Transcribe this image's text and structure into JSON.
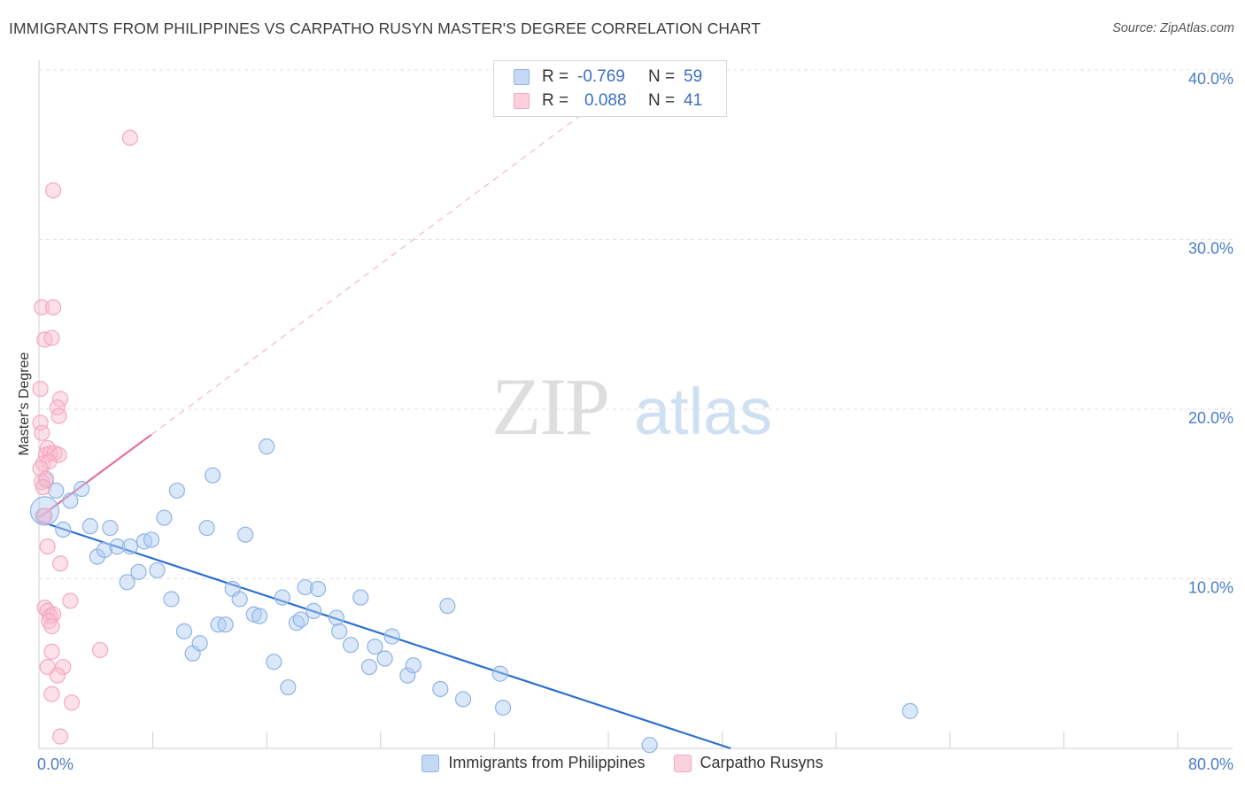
{
  "title": "IMMIGRANTS FROM PHILIPPINES VS CARPATHO RUSYN MASTER'S DEGREE CORRELATION CHART",
  "source": "Source: ZipAtlas.com",
  "watermark": {
    "zip": "ZIP",
    "atlas": "atlas"
  },
  "legend": {
    "rows": [
      {
        "r_label": "R =",
        "r_value": "-0.769",
        "n_label": "N =",
        "n_value": "59"
      },
      {
        "r_label": "R =",
        "r_value": "0.088",
        "n_label": "N =",
        "n_value": "41"
      }
    ]
  },
  "chart_data": {
    "type": "scatter",
    "title": "IMMIGRANTS FROM PHILIPPINES VS CARPATHO RUSYN MASTER'S DEGREE CORRELATION CHART",
    "xlabel": "",
    "ylabel": "Master's Degree",
    "xlim": [
      0,
      80
    ],
    "ylim": [
      0,
      40
    ],
    "x_tick_labels": [
      "0.0%",
      "80.0%"
    ],
    "y_ticks": [
      10,
      20,
      30,
      40
    ],
    "y_tick_labels": [
      "10.0%",
      "20.0%",
      "30.0%",
      "40.0%"
    ],
    "grid": true,
    "legend_position": "top-center",
    "series": [
      {
        "name": "Immigrants from Philippines",
        "color": "#8fb4e6",
        "line_color": "#2d6fd1",
        "stats": {
          "R": -0.769,
          "N": 59
        },
        "trend": {
          "x0": 0,
          "y0": 13.4,
          "x1": 48.6,
          "y1": 0
        },
        "points": [
          [
            0.3,
            13.7
          ],
          [
            0.5,
            15.8
          ],
          [
            1.2,
            15.2
          ],
          [
            1.7,
            12.9
          ],
          [
            2.2,
            14.6
          ],
          [
            3.0,
            15.3
          ],
          [
            3.6,
            13.1
          ],
          [
            4.1,
            11.3
          ],
          [
            4.6,
            11.7
          ],
          [
            5.0,
            13.0
          ],
          [
            5.5,
            11.9
          ],
          [
            6.2,
            9.8
          ],
          [
            6.4,
            11.9
          ],
          [
            7.0,
            10.4
          ],
          [
            7.4,
            12.2
          ],
          [
            7.9,
            12.3
          ],
          [
            8.3,
            10.5
          ],
          [
            8.8,
            13.6
          ],
          [
            9.3,
            8.8
          ],
          [
            9.7,
            15.2
          ],
          [
            10.2,
            6.9
          ],
          [
            10.8,
            5.6
          ],
          [
            11.3,
            6.2
          ],
          [
            11.8,
            13.0
          ],
          [
            12.2,
            16.1
          ],
          [
            12.6,
            7.3
          ],
          [
            13.1,
            7.3
          ],
          [
            13.6,
            9.4
          ],
          [
            14.1,
            8.8
          ],
          [
            14.5,
            12.6
          ],
          [
            15.1,
            7.9
          ],
          [
            15.5,
            7.8
          ],
          [
            16.0,
            17.8
          ],
          [
            16.5,
            5.1
          ],
          [
            17.1,
            8.9
          ],
          [
            17.5,
            3.6
          ],
          [
            18.1,
            7.4
          ],
          [
            18.4,
            7.6
          ],
          [
            18.7,
            9.5
          ],
          [
            19.3,
            8.1
          ],
          [
            19.6,
            9.4
          ],
          [
            20.9,
            7.7
          ],
          [
            21.1,
            6.9
          ],
          [
            21.9,
            6.1
          ],
          [
            22.6,
            8.9
          ],
          [
            23.2,
            4.8
          ],
          [
            23.6,
            6.0
          ],
          [
            24.3,
            5.3
          ],
          [
            24.8,
            6.6
          ],
          [
            25.9,
            4.3
          ],
          [
            26.3,
            4.9
          ],
          [
            28.2,
            3.5
          ],
          [
            28.7,
            8.4
          ],
          [
            29.8,
            2.9
          ],
          [
            32.4,
            4.4
          ],
          [
            32.6,
            2.4
          ],
          [
            42.9,
            0.2
          ],
          [
            61.2,
            2.2
          ],
          [
            0.4,
            14.0
          ]
        ]
      },
      {
        "name": "Carpatho Rusyns",
        "color": "#f4a8c0",
        "line_color": "#e8719b",
        "stats": {
          "R": 0.088,
          "N": 41
        },
        "trend": {
          "x0": 0,
          "y0": 13.6,
          "x1": 7.9,
          "y1": 18.5
        },
        "trend_ext": {
          "x0": 7.9,
          "y0": 18.5,
          "x1": 38.0,
          "y1": 37.3
        },
        "points": [
          [
            6.4,
            36.0
          ],
          [
            1.0,
            32.9
          ],
          [
            0.2,
            26.0
          ],
          [
            1.0,
            26.0
          ],
          [
            0.4,
            24.1
          ],
          [
            0.9,
            24.2
          ],
          [
            0.1,
            21.2
          ],
          [
            1.5,
            20.6
          ],
          [
            1.3,
            20.1
          ],
          [
            1.4,
            19.6
          ],
          [
            0.1,
            19.2
          ],
          [
            0.2,
            18.6
          ],
          [
            0.6,
            17.7
          ],
          [
            0.5,
            17.3
          ],
          [
            0.8,
            17.4
          ],
          [
            1.1,
            17.4
          ],
          [
            1.4,
            17.3
          ],
          [
            0.3,
            16.8
          ],
          [
            0.7,
            16.9
          ],
          [
            0.1,
            16.5
          ],
          [
            0.2,
            15.7
          ],
          [
            0.5,
            15.9
          ],
          [
            0.4,
            13.7
          ],
          [
            0.6,
            11.9
          ],
          [
            1.5,
            10.9
          ],
          [
            2.2,
            8.7
          ],
          [
            0.4,
            8.3
          ],
          [
            0.6,
            8.1
          ],
          [
            0.8,
            7.8
          ],
          [
            1.0,
            7.9
          ],
          [
            0.7,
            7.5
          ],
          [
            0.9,
            7.2
          ],
          [
            4.3,
            5.8
          ],
          [
            0.9,
            5.7
          ],
          [
            0.6,
            4.8
          ],
          [
            1.7,
            4.8
          ],
          [
            1.3,
            4.3
          ],
          [
            0.9,
            3.2
          ],
          [
            2.3,
            2.7
          ],
          [
            1.5,
            0.7
          ],
          [
            0.3,
            15.4
          ]
        ]
      }
    ]
  }
}
